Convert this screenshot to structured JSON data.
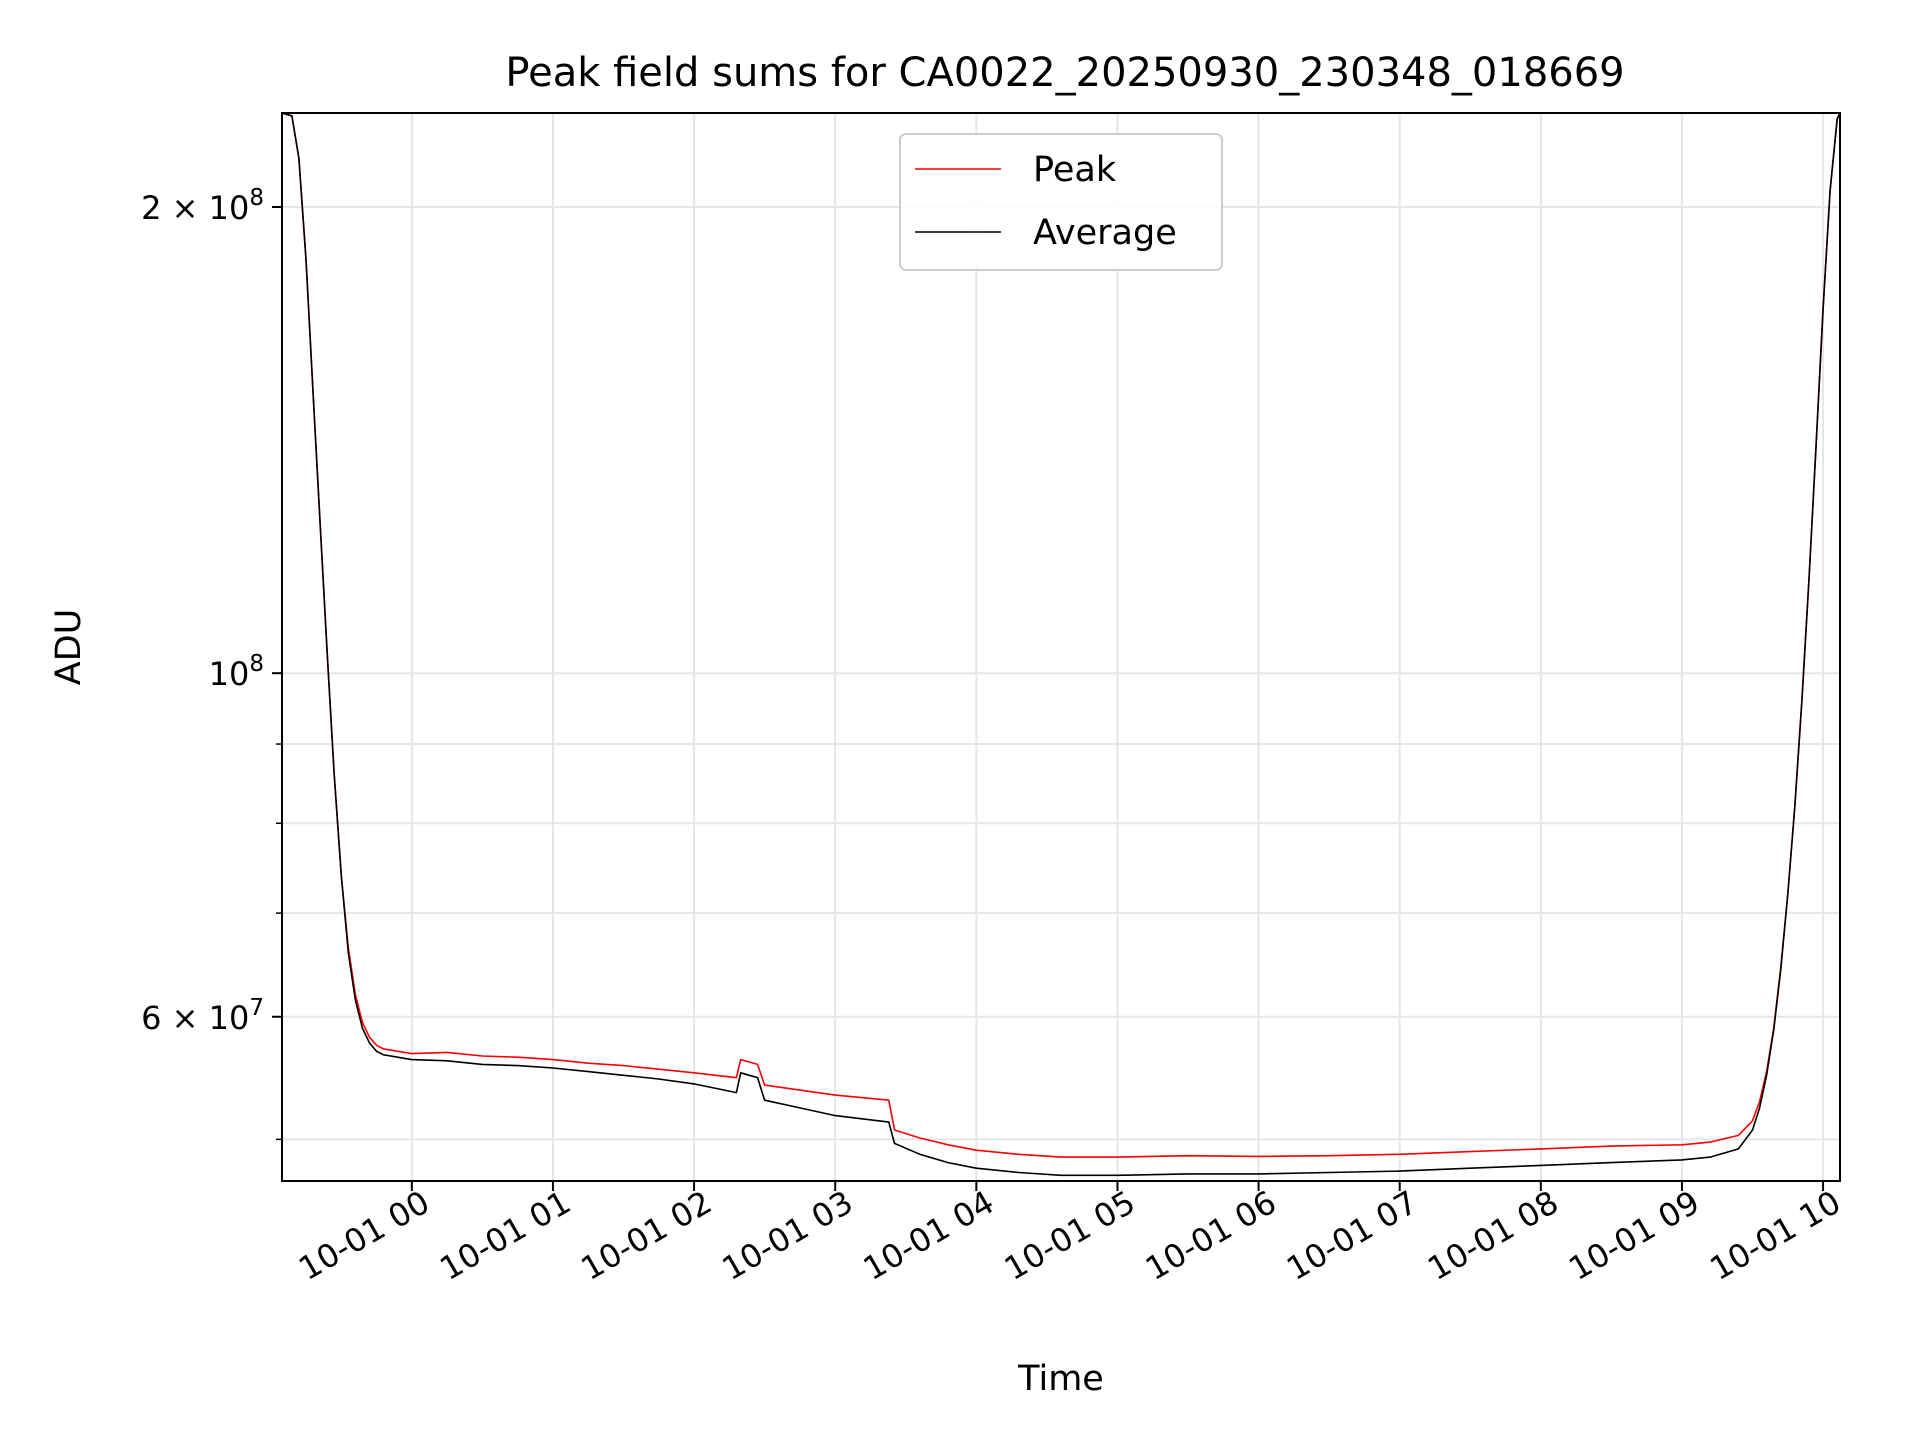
{
  "chart_data": {
    "type": "line",
    "title": "Peak field sums for CA0022_20250930_230348_018669",
    "xlabel": "Time",
    "ylabel": "ADU",
    "yscale": "log",
    "ylim": [
      47000000,
      230000000
    ],
    "xlim_hours": [
      -0.92,
      10.12
    ],
    "x_unit": "hours since 10-01 00:00",
    "grid": true,
    "legend_position": "upper-center",
    "x_ticks": [
      {
        "label": "10-01 00",
        "hour": 0
      },
      {
        "label": "10-01 01",
        "hour": 1
      },
      {
        "label": "10-01 02",
        "hour": 2
      },
      {
        "label": "10-01 03",
        "hour": 3
      },
      {
        "label": "10-01 04",
        "hour": 4
      },
      {
        "label": "10-01 05",
        "hour": 5
      },
      {
        "label": "10-01 06",
        "hour": 6
      },
      {
        "label": "10-01 07",
        "hour": 7
      },
      {
        "label": "10-01 08",
        "hour": 8
      },
      {
        "label": "10-01 09",
        "hour": 9
      },
      {
        "label": "10-01 10",
        "hour": 10
      }
    ],
    "y_ticks_major": [
      {
        "value": 60000000,
        "mantissa": "6",
        "exponent": "7",
        "prefix": "6 × 10",
        "sup": "7"
      },
      {
        "value": 100000000,
        "mantissa": "",
        "exponent": "8",
        "prefix": "10",
        "sup": "8"
      },
      {
        "value": 200000000,
        "mantissa": "2",
        "exponent": "8",
        "prefix": "2 × 10",
        "sup": "8"
      }
    ],
    "y_ticks_minor": [
      50000000,
      70000000,
      80000000,
      90000000
    ],
    "series": [
      {
        "name": "Peak",
        "color": "#ff0000",
        "x": [
          -0.92,
          -0.85,
          -0.8,
          -0.75,
          -0.7,
          -0.65,
          -0.6,
          -0.55,
          -0.5,
          -0.45,
          -0.4,
          -0.35,
          -0.3,
          -0.25,
          -0.2,
          -0.15,
          -0.1,
          -0.05,
          0,
          0.25,
          0.5,
          0.75,
          1,
          1.25,
          1.5,
          1.75,
          2,
          2.3,
          2.33,
          2.45,
          2.5,
          2.75,
          3,
          3.38,
          3.42,
          3.6,
          3.8,
          4,
          4.3,
          4.6,
          5,
          5.5,
          6,
          6.5,
          7,
          7.5,
          8,
          8.5,
          9,
          9.2,
          9.4,
          9.5,
          9.55,
          9.6,
          9.65,
          9.7,
          9.75,
          9.8,
          9.85,
          9.9,
          9.95,
          10,
          10.05,
          10.1,
          10.12
        ],
        "values": [
          230000000,
          229000000,
          215000000,
          185000000,
          152000000,
          125000000,
          103000000,
          86000000,
          74000000,
          66500000,
          62000000,
          59500000,
          58200000,
          57500000,
          57200000,
          57100000,
          57000000,
          56900000,
          56800000,
          56900000,
          56600000,
          56500000,
          56300000,
          56000000,
          55800000,
          55500000,
          55200000,
          54800000,
          56300000,
          55900000,
          54200000,
          53800000,
          53400000,
          53000000,
          50700000,
          50100000,
          49600000,
          49200000,
          48900000,
          48700000,
          48700000,
          48800000,
          48750000,
          48800000,
          48900000,
          49100000,
          49300000,
          49500000,
          49600000,
          49800000,
          50300000,
          51400000,
          52900000,
          55300000,
          59000000,
          64500000,
          72000000,
          82000000,
          96000000,
          115000000,
          140000000,
          172000000,
          205000000,
          228000000,
          230000000
        ]
      },
      {
        "name": "Average",
        "color": "#000000",
        "x": [
          -0.92,
          -0.85,
          -0.8,
          -0.75,
          -0.7,
          -0.65,
          -0.6,
          -0.55,
          -0.5,
          -0.45,
          -0.4,
          -0.35,
          -0.3,
          -0.25,
          -0.2,
          -0.15,
          -0.1,
          -0.05,
          0,
          0.25,
          0.5,
          0.75,
          1,
          1.25,
          1.5,
          1.75,
          2,
          2.3,
          2.33,
          2.45,
          2.5,
          2.75,
          3,
          3.38,
          3.42,
          3.6,
          3.8,
          4,
          4.3,
          4.6,
          5,
          5.5,
          6,
          6.5,
          7,
          7.5,
          8,
          8.5,
          9,
          9.2,
          9.4,
          9.5,
          9.55,
          9.6,
          9.65,
          9.7,
          9.75,
          9.8,
          9.85,
          9.9,
          9.95,
          10,
          10.05,
          10.1,
          10.12
        ],
        "values": [
          230000000,
          229000000,
          215000000,
          185000000,
          152000000,
          125000000,
          103000000,
          86000000,
          74000000,
          66000000,
          61500000,
          59000000,
          57700000,
          57000000,
          56700000,
          56600000,
          56500000,
          56400000,
          56300000,
          56200000,
          55900000,
          55800000,
          55600000,
          55300000,
          55000000,
          54700000,
          54300000,
          53600000,
          55200000,
          54800000,
          53000000,
          52400000,
          51800000,
          51300000,
          49700000,
          48900000,
          48300000,
          47900000,
          47600000,
          47400000,
          47400000,
          47500000,
          47500000,
          47600000,
          47700000,
          47900000,
          48100000,
          48300000,
          48500000,
          48700000,
          49300000,
          50700000,
          52400000,
          55000000,
          58800000,
          64300000,
          72000000,
          82000000,
          96000000,
          115000000,
          140000000,
          172000000,
          205000000,
          228000000,
          230000000
        ]
      }
    ]
  },
  "legend": {
    "items": [
      {
        "label": "Peak",
        "color": "#ff0000"
      },
      {
        "label": "Average",
        "color": "#000000"
      }
    ]
  },
  "colors": {
    "grid": "#e6e6e6",
    "axes": "#000000",
    "background": "#ffffff"
  }
}
